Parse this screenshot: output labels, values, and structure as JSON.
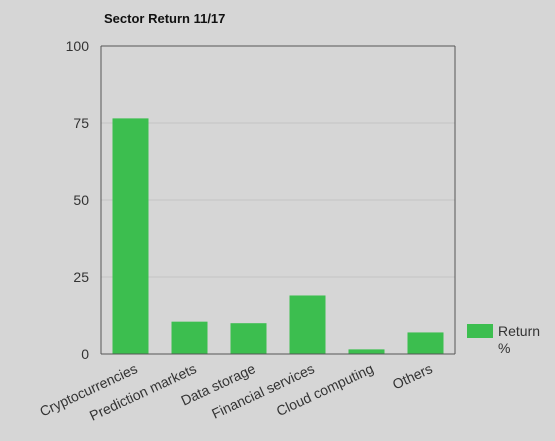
{
  "chart_data": {
    "type": "bar",
    "title": "Sector Return 11/17",
    "xlabel": "",
    "ylabel": "",
    "categories": [
      "Cryptocurrencies",
      "Prediction markets",
      "Data storage",
      "Financial services",
      "Cloud computing",
      "Others"
    ],
    "series": [
      {
        "name": "Return %",
        "values": [
          76.5,
          10.5,
          10,
          19,
          1.5,
          7
        ],
        "color": "#3cbe4f"
      }
    ],
    "ylim": [
      0,
      100
    ],
    "yticks": [
      0,
      25,
      50,
      75,
      100
    ],
    "grid": true,
    "legend_position": "right"
  }
}
